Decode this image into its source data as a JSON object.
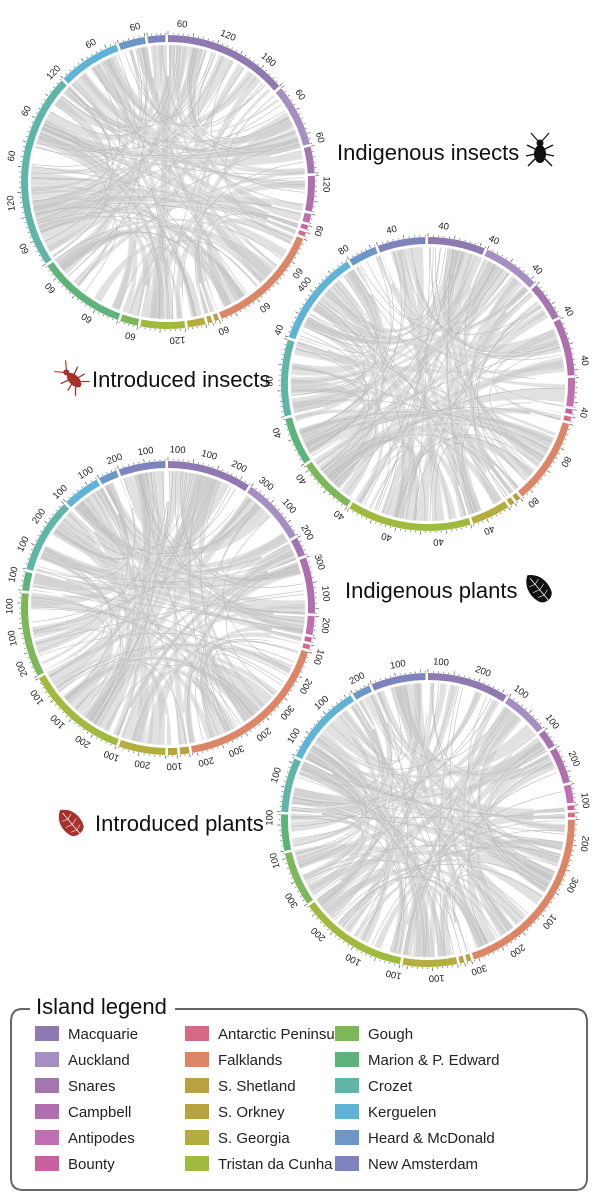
{
  "panels": [
    {
      "title": "Indigenous insects",
      "icon": "beetle-icon",
      "icon_color": "#111111",
      "arcs": [
        {
          "island": "Macquarie",
          "share": 0.14
        },
        {
          "island": "Auckland",
          "share": 0.07
        },
        {
          "island": "Snares",
          "share": 0.03
        },
        {
          "island": "Campbell",
          "share": 0.04
        },
        {
          "island": "Antipodes",
          "share": 0.01
        },
        {
          "island": "Bounty",
          "share": 0.005
        },
        {
          "island": "Antarctic Peninsula",
          "share": 0.005
        },
        {
          "island": "Falklands",
          "share": 0.13
        },
        {
          "island": "S. Shetland",
          "share": 0.005
        },
        {
          "island": "S. Orkney",
          "share": 0.005
        },
        {
          "island": "S. Georgia",
          "share": 0.02
        },
        {
          "island": "Tristan da Cunha",
          "share": 0.05
        },
        {
          "island": "Gough",
          "share": 0.02
        },
        {
          "island": "Marion & P. Edward",
          "share": 0.1
        },
        {
          "island": "Crozet",
          "share": 0.22
        },
        {
          "island": "Kerguelen",
          "share": 0.07
        },
        {
          "island": "Heard & McDonald",
          "share": 0.03
        },
        {
          "island": "New Amsterdam",
          "share": 0.02
        }
      ],
      "tick_labels": [
        "60",
        "120",
        "180",
        "60",
        "60",
        "120",
        "60",
        "60",
        "60",
        "60",
        "120",
        "60",
        "60",
        "60",
        "60",
        "120",
        "60",
        "60",
        "120",
        "60",
        "60"
      ]
    },
    {
      "title": "Introduced insects",
      "icon": "beetle-icon",
      "icon_color": "#a8302a",
      "arcs": [
        {
          "island": "Macquarie",
          "share": 0.06
        },
        {
          "island": "Auckland",
          "share": 0.06
        },
        {
          "island": "Snares",
          "share": 0.04
        },
        {
          "island": "Campbell",
          "share": 0.06
        },
        {
          "island": "Antipodes",
          "share": 0.03
        },
        {
          "island": "Bounty",
          "share": 0.005
        },
        {
          "island": "Antarctic Peninsula",
          "share": 0.005
        },
        {
          "island": "Falklands",
          "share": 0.09
        },
        {
          "island": "S. Shetland",
          "share": 0.005
        },
        {
          "island": "S. Orkney",
          "share": 0.005
        },
        {
          "island": "S. Georgia",
          "share": 0.04
        },
        {
          "island": "Tristan da Cunha",
          "share": 0.13
        },
        {
          "island": "Gough",
          "share": 0.06
        },
        {
          "island": "Marion & P. Edward",
          "share": 0.05
        },
        {
          "island": "Crozet",
          "share": 0.08
        },
        {
          "island": "Kerguelen",
          "share": 0.1
        },
        {
          "island": "Heard & McDonald",
          "share": 0.03
        },
        {
          "island": "New Amsterdam",
          "share": 0.05
        }
      ],
      "tick_labels": [
        "40",
        "40",
        "40",
        "40",
        "40",
        "40",
        "80",
        "80",
        "40",
        "40",
        "40",
        "40",
        "40",
        "40",
        "80",
        "40",
        "400",
        "80",
        "40"
      ]
    },
    {
      "title": "Indigenous plants",
      "icon": "leaf-icon",
      "icon_color": "#111111",
      "arcs": [
        {
          "island": "Macquarie",
          "share": 0.09
        },
        {
          "island": "Auckland",
          "share": 0.07
        },
        {
          "island": "Snares",
          "share": 0.02
        },
        {
          "island": "Campbell",
          "share": 0.06
        },
        {
          "island": "Antipodes",
          "share": 0.02
        },
        {
          "island": "Bounty",
          "share": 0.005
        },
        {
          "island": "Antarctic Peninsula",
          "share": 0.005
        },
        {
          "island": "Falklands",
          "share": 0.17
        },
        {
          "island": "S. Shetland",
          "share": 0.01
        },
        {
          "island": "S. Orkney",
          "share": 0.01
        },
        {
          "island": "S. Georgia",
          "share": 0.05
        },
        {
          "island": "Tristan da Cunha",
          "share": 0.11
        },
        {
          "island": "Gough",
          "share": 0.09
        },
        {
          "island": "Marion & P. Edward",
          "share": 0.02
        },
        {
          "island": "Crozet",
          "share": 0.08
        },
        {
          "island": "Kerguelen",
          "share": 0.04
        },
        {
          "island": "Heard & McDonald",
          "share": 0.02
        },
        {
          "island": "New Amsterdam",
          "share": 0.05
        }
      ],
      "tick_labels": [
        "100",
        "100",
        "200",
        "300",
        "100",
        "200",
        "300",
        "100",
        "200",
        "100",
        "200",
        "300",
        "200",
        "300",
        "200",
        "100",
        "200",
        "100",
        "200",
        "100",
        "100",
        "200",
        "100",
        "100",
        "100",
        "100",
        "200",
        "100",
        "100",
        "200",
        "100"
      ]
    },
    {
      "title": "Introduced plants",
      "icon": "leaf-icon",
      "icon_color": "#a8302a",
      "arcs": [
        {
          "island": "Macquarie",
          "share": 0.09
        },
        {
          "island": "Auckland",
          "share": 0.05
        },
        {
          "island": "Snares",
          "share": 0.02
        },
        {
          "island": "Campbell",
          "share": 0.04
        },
        {
          "island": "Antipodes",
          "share": 0.02
        },
        {
          "island": "Bounty",
          "share": 0.005
        },
        {
          "island": "Antarctic Peninsula",
          "share": 0.005
        },
        {
          "island": "Falklands",
          "share": 0.2
        },
        {
          "island": "S. Shetland",
          "share": 0.005
        },
        {
          "island": "S. Orkney",
          "share": 0.005
        },
        {
          "island": "S. Georgia",
          "share": 0.06
        },
        {
          "island": "Tristan da Cunha",
          "share": 0.12
        },
        {
          "island": "Gough",
          "share": 0.06
        },
        {
          "island": "Marion & P. Edward",
          "share": 0.04
        },
        {
          "island": "Crozet",
          "share": 0.06
        },
        {
          "island": "Kerguelen",
          "share": 0.09
        },
        {
          "island": "Heard & McDonald",
          "share": 0.02
        },
        {
          "island": "New Amsterdam",
          "share": 0.06
        }
      ],
      "tick_labels": [
        "100",
        "200",
        "100",
        "100",
        "200",
        "100",
        "200",
        "300",
        "100",
        "200",
        "300",
        "100",
        "100",
        "100",
        "200",
        "300",
        "100",
        "100",
        "100",
        "100",
        "100",
        "200",
        "100"
      ]
    }
  ],
  "legend": {
    "title": "Island legend",
    "items": [
      {
        "label": "Macquarie",
        "color": "#8e7ab0"
      },
      {
        "label": "Auckland",
        "color": "#a58ec1"
      },
      {
        "label": "Snares",
        "color": "#a376b0"
      },
      {
        "label": "Campbell",
        "color": "#b06eae"
      },
      {
        "label": "Antipodes",
        "color": "#c06fb0"
      },
      {
        "label": "Bounty",
        "color": "#c8629f"
      },
      {
        "label": "Antarctic Peninsula",
        "color": "#d46a86"
      },
      {
        "label": "Falklands",
        "color": "#dd8667"
      },
      {
        "label": "S. Shetland",
        "color": "#b9a040"
      },
      {
        "label": "S. Orkney",
        "color": "#b8a43e"
      },
      {
        "label": "S. Georgia",
        "color": "#b3ae3d"
      },
      {
        "label": "Tristan da Cunha",
        "color": "#9fba3c"
      },
      {
        "label": "Gough",
        "color": "#7cb75a"
      },
      {
        "label": "Marion & P. Edward",
        "color": "#5eb37a"
      },
      {
        "label": "Crozet",
        "color": "#5fb6a8"
      },
      {
        "label": "Kerguelen",
        "color": "#5fb3d6"
      },
      {
        "label": "Heard & McDonald",
        "color": "#6d97c6"
      },
      {
        "label": "New Amsterdam",
        "color": "#7f83bd"
      }
    ]
  }
}
